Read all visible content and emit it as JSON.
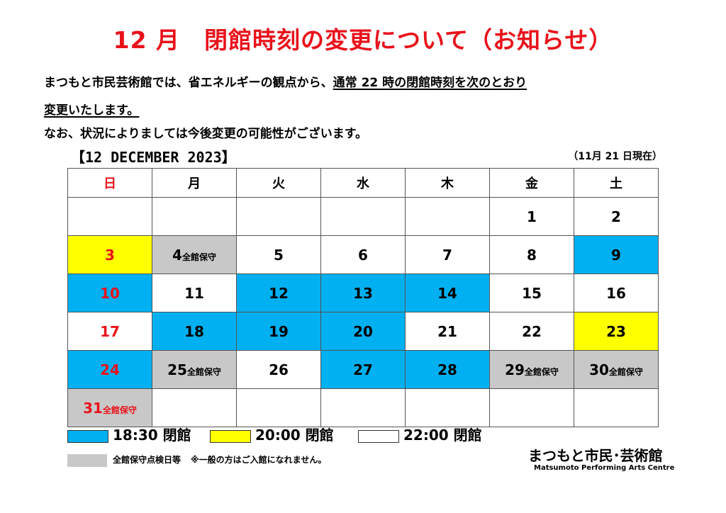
{
  "title": "12 月　閉館時刻の変更について（お知らせ）",
  "intro": {
    "line1_a": "まつもと市民芸術館では、省エネルギーの観点から、",
    "line1_b": "通常 22 時の閉館時刻を次のとおり",
    "line2": "変更いたします。",
    "line3": "なお、状況によりましては今後変更の可能性がございます。"
  },
  "calendar": {
    "month_label": "【12 DECEMBER  2023】",
    "as_of": "（11月 21 日現在）",
    "weekdays": [
      "日",
      "月",
      "火",
      "水",
      "木",
      "金",
      "土"
    ],
    "weeks": [
      [
        {
          "day": "",
          "status": "white"
        },
        {
          "day": "",
          "status": "white"
        },
        {
          "day": "",
          "status": "white"
        },
        {
          "day": "",
          "status": "white"
        },
        {
          "day": "",
          "status": "white"
        },
        {
          "day": "1",
          "status": "white"
        },
        {
          "day": "2",
          "status": "white"
        }
      ],
      [
        {
          "day": "3",
          "status": "yellow"
        },
        {
          "day": "4",
          "note": "全館保守",
          "status": "gray"
        },
        {
          "day": "5",
          "status": "white"
        },
        {
          "day": "6",
          "status": "white"
        },
        {
          "day": "7",
          "status": "white"
        },
        {
          "day": "8",
          "status": "white"
        },
        {
          "day": "9",
          "status": "blue"
        }
      ],
      [
        {
          "day": "10",
          "status": "blue"
        },
        {
          "day": "11",
          "status": "white"
        },
        {
          "day": "12",
          "status": "blue"
        },
        {
          "day": "13",
          "status": "blue"
        },
        {
          "day": "14",
          "status": "blue"
        },
        {
          "day": "15",
          "status": "white"
        },
        {
          "day": "16",
          "status": "white"
        }
      ],
      [
        {
          "day": "17",
          "status": "white"
        },
        {
          "day": "18",
          "status": "blue"
        },
        {
          "day": "19",
          "status": "blue"
        },
        {
          "day": "20",
          "status": "blue"
        },
        {
          "day": "21",
          "status": "white"
        },
        {
          "day": "22",
          "status": "white"
        },
        {
          "day": "23",
          "status": "yellow"
        }
      ],
      [
        {
          "day": "24",
          "status": "blue"
        },
        {
          "day": "25",
          "note": "全館保守",
          "status": "gray"
        },
        {
          "day": "26",
          "status": "white"
        },
        {
          "day": "27",
          "status": "blue"
        },
        {
          "day": "28",
          "status": "blue"
        },
        {
          "day": "29",
          "note": "全館保守",
          "status": "gray"
        },
        {
          "day": "30",
          "note": "全館保守",
          "status": "gray"
        }
      ],
      [
        {
          "day": "31",
          "note": "全館保守",
          "status": "gray"
        },
        {
          "day": "",
          "status": "white"
        },
        {
          "day": "",
          "status": "white"
        },
        {
          "day": "",
          "status": "white"
        },
        {
          "day": "",
          "status": "white"
        },
        {
          "day": "",
          "status": "white"
        },
        {
          "day": "",
          "status": "white"
        }
      ]
    ]
  },
  "legend": {
    "blue_label": "18:30 閉館",
    "yellow_label": "20:00 閉館",
    "white_label": "22:00 閉館",
    "gray_label": "全館保守点検日等",
    "gray_note": "※一般の方はご入館になれません。"
  },
  "logo": {
    "jp": "まつもと市民･芸術館",
    "en": "Matsumoto Performing Arts Centre"
  },
  "colors": {
    "title_red": "#e8121b",
    "blue": "#00b0f0",
    "yellow": "#ffff00",
    "gray": "#c8c8c8"
  }
}
